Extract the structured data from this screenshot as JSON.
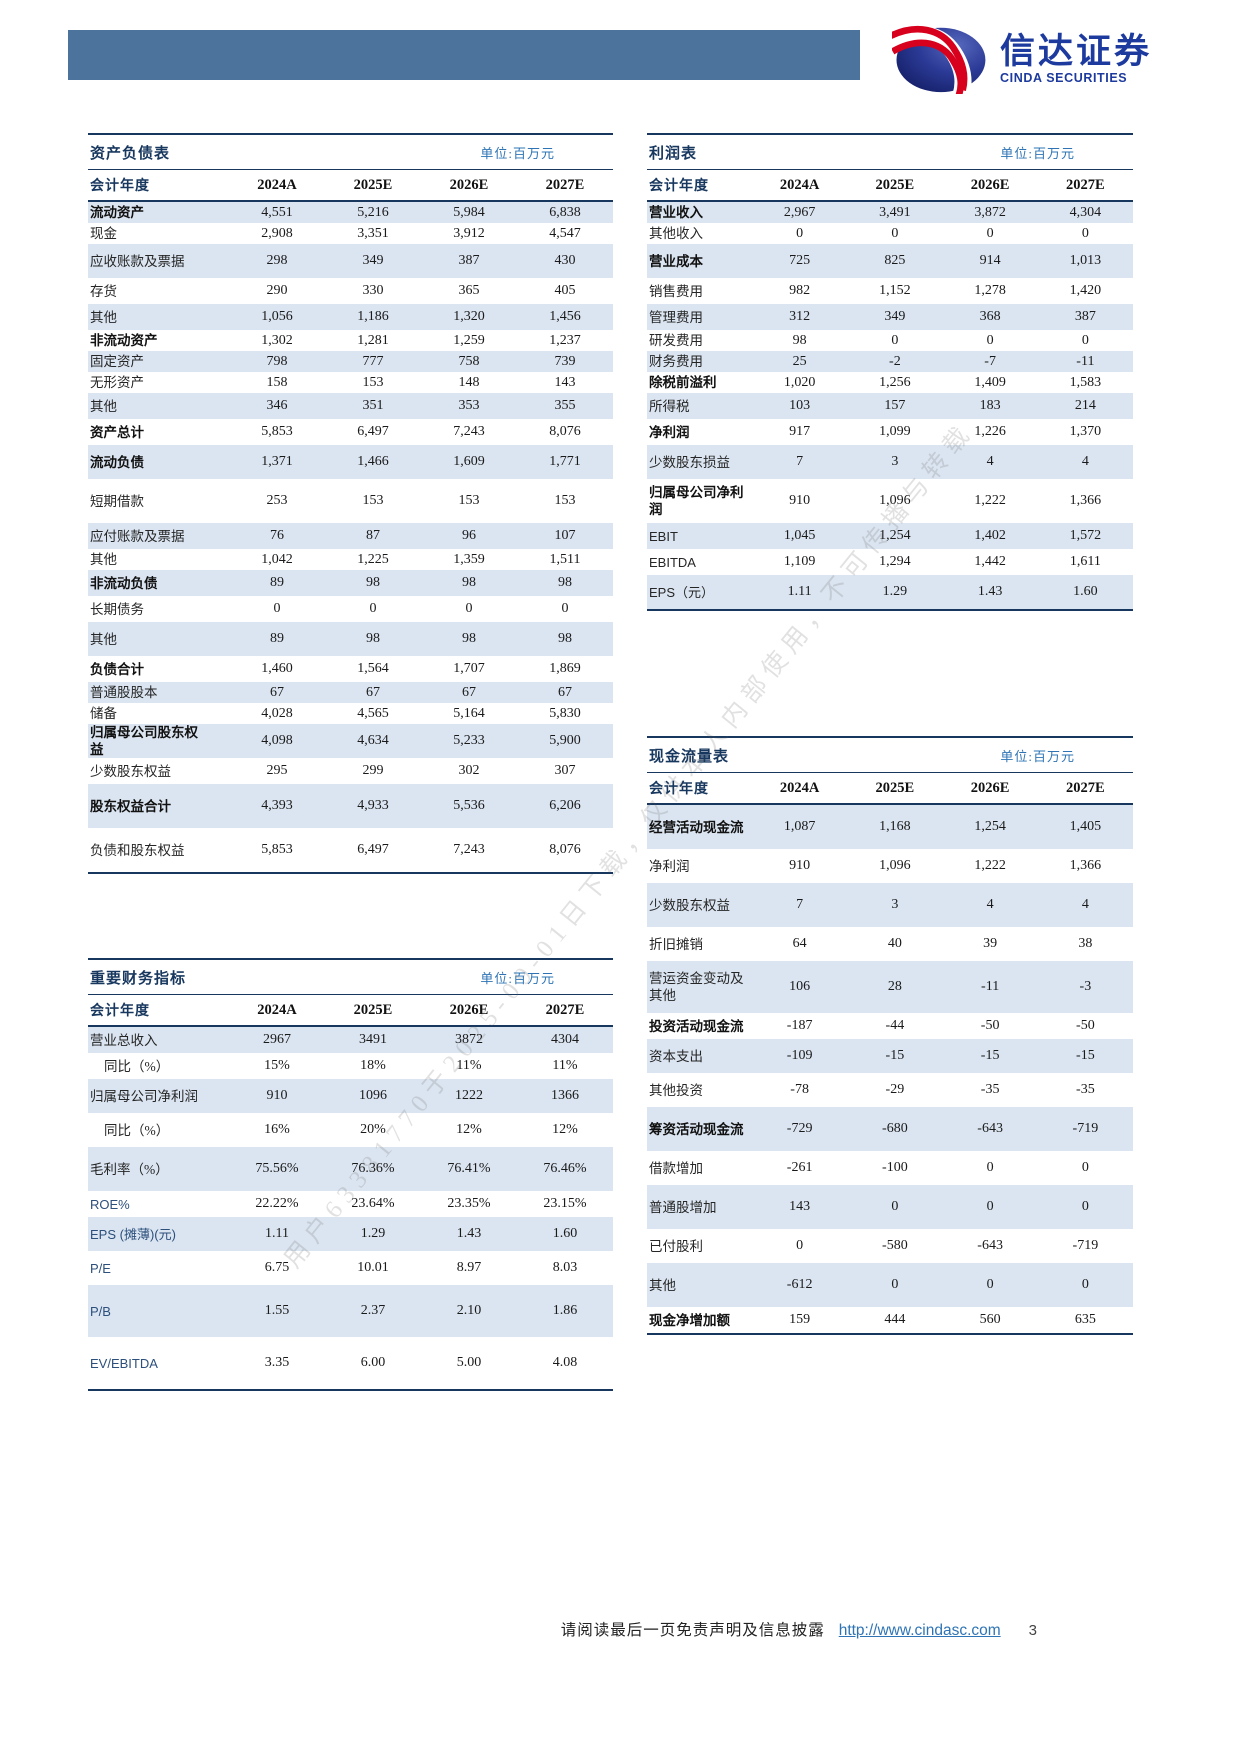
{
  "page": {
    "logo": {
      "cn": "信达证券",
      "en": "CINDA SECURITIES"
    },
    "watermark": "用户63381770于2025-09-01日下载，仅供本人内部使用，不可传播与转载",
    "footer": {
      "disclaimer": "请阅读最后一页免责声明及信息披露",
      "link": "http://www.cindasc.com",
      "page_number": "3"
    },
    "colors": {
      "header_bar": "#4b739c",
      "table_navy": "#17375e",
      "unit_blue": "#2e74b5",
      "stripe_blue": "#dbe5f1",
      "logo_blue": "#1d3a9e",
      "logo_red": "#d7001d"
    }
  },
  "tables": {
    "balance_sheet": {
      "title": "资产负债表",
      "unit": "单位:百万元",
      "header": [
        "会计年度",
        "2024A",
        "2025E",
        "2026E",
        "2027E"
      ],
      "rows": [
        {
          "label": "流动资产",
          "bold": true,
          "size": "s",
          "values": [
            "4,551",
            "5,216",
            "5,984",
            "6,838"
          ]
        },
        {
          "label": "现金",
          "size": "s",
          "values": [
            "2,908",
            "3,351",
            "3,912",
            "4,547"
          ]
        },
        {
          "label": "应收账款及票据",
          "size": "l",
          "values": [
            "298",
            "349",
            "387",
            "430"
          ]
        },
        {
          "label": "存货",
          "size": "m",
          "values": [
            "290",
            "330",
            "365",
            "405"
          ]
        },
        {
          "label": "其他",
          "size": "m",
          "values": [
            "1,056",
            "1,186",
            "1,320",
            "1,456"
          ]
        },
        {
          "label": "非流动资产",
          "bold": true,
          "size": "s",
          "values": [
            "1,302",
            "1,281",
            "1,259",
            "1,237"
          ]
        },
        {
          "label": "固定资产",
          "size": "s",
          "values": [
            "798",
            "777",
            "758",
            "739"
          ]
        },
        {
          "label": "无形资产",
          "size": "s",
          "values": [
            "158",
            "153",
            "148",
            "143"
          ]
        },
        {
          "label": "其他",
          "size": "m",
          "values": [
            "346",
            "351",
            "353",
            "355"
          ]
        },
        {
          "label": "资产总计",
          "bold": true,
          "size": "m",
          "values": [
            "5,853",
            "6,497",
            "7,243",
            "8,076"
          ]
        },
        {
          "label": "流动负债",
          "bold": true,
          "size": "l",
          "values": [
            "1,371",
            "1,466",
            "1,609",
            "1,771"
          ]
        },
        {
          "label": "短期借款",
          "size": "xl",
          "values": [
            "253",
            "153",
            "153",
            "153"
          ]
        },
        {
          "label": "应付账款及票据",
          "size": "m",
          "values": [
            "76",
            "87",
            "96",
            "107"
          ]
        },
        {
          "label": "其他",
          "size": "s",
          "values": [
            "1,042",
            "1,225",
            "1,359",
            "1,511"
          ]
        },
        {
          "label": "非流动负债",
          "bold": true,
          "size": "m",
          "values": [
            "89",
            "98",
            "98",
            "98"
          ]
        },
        {
          "label": "长期债务",
          "size": "m",
          "values": [
            "0",
            "0",
            "0",
            "0"
          ]
        },
        {
          "label": "其他",
          "size": "l",
          "values": [
            "89",
            "98",
            "98",
            "98"
          ]
        },
        {
          "label": "负债合计",
          "bold": true,
          "size": "m",
          "values": [
            "1,460",
            "1,564",
            "1,707",
            "1,869"
          ]
        },
        {
          "label": "普通股股本",
          "size": "s",
          "values": [
            "67",
            "67",
            "67",
            "67"
          ]
        },
        {
          "label": "储备",
          "size": "s",
          "values": [
            "4,028",
            "4,565",
            "5,164",
            "5,830"
          ]
        },
        {
          "label": "归属母公司股东权\n益",
          "bold": true,
          "size": "l",
          "values": [
            "4,098",
            "4,634",
            "5,233",
            "5,900"
          ]
        },
        {
          "label": "少数股东权益",
          "size": "m",
          "values": [
            "295",
            "299",
            "302",
            "307"
          ]
        },
        {
          "label": "股东权益合计",
          "bold": true,
          "size": "xl",
          "values": [
            "4,393",
            "4,933",
            "5,536",
            "6,206"
          ]
        },
        {
          "label": "负债和股东权益",
          "size": "xl",
          "values": [
            "5,853",
            "6,497",
            "7,243",
            "8,076"
          ]
        }
      ]
    },
    "income_statement": {
      "title": "利润表",
      "unit": "单位:百万元",
      "header": [
        "会计年度",
        "2024A",
        "2025E",
        "2026E",
        "2027E"
      ],
      "rows": [
        {
          "label": "营业收入",
          "bold": true,
          "size": "s",
          "values": [
            "2,967",
            "3,491",
            "3,872",
            "4,304"
          ]
        },
        {
          "label": "其他收入",
          "size": "s",
          "values": [
            "0",
            "0",
            "0",
            "0"
          ]
        },
        {
          "label": "营业成本",
          "bold": true,
          "size": "l",
          "values": [
            "725",
            "825",
            "914",
            "1,013"
          ]
        },
        {
          "label": "销售费用",
          "size": "m",
          "values": [
            "982",
            "1,152",
            "1,278",
            "1,420"
          ]
        },
        {
          "label": "管理费用",
          "size": "m",
          "values": [
            "312",
            "349",
            "368",
            "387"
          ]
        },
        {
          "label": "研发费用",
          "size": "s",
          "values": [
            "98",
            "0",
            "0",
            "0"
          ]
        },
        {
          "label": "财务费用",
          "size": "s",
          "values": [
            "25",
            "-2",
            "-7",
            "-11"
          ]
        },
        {
          "label": "除税前溢利",
          "bold": true,
          "size": "s",
          "values": [
            "1,020",
            "1,256",
            "1,409",
            "1,583"
          ]
        },
        {
          "label": "所得税",
          "size": "m",
          "values": [
            "103",
            "157",
            "183",
            "214"
          ]
        },
        {
          "label": "净利润",
          "bold": true,
          "size": "m",
          "values": [
            "917",
            "1,099",
            "1,226",
            "1,370"
          ]
        },
        {
          "label": "少数股东损益",
          "size": "l",
          "values": [
            "7",
            "3",
            "4",
            "4"
          ]
        },
        {
          "label": "归属母公司净利\n润",
          "bold": true,
          "size": "xl",
          "values": [
            "910",
            "1,096",
            "1,222",
            "1,366"
          ]
        },
        {
          "label": "EBIT",
          "latin": true,
          "size": "m",
          "values": [
            "1,045",
            "1,254",
            "1,402",
            "1,572"
          ]
        },
        {
          "label": "EBITDA",
          "latin": true,
          "size": "m",
          "values": [
            "1,109",
            "1,294",
            "1,442",
            "1,611"
          ]
        },
        {
          "label": "EPS（元）",
          "latin": true,
          "size": "l",
          "values": [
            "1.11",
            "1.29",
            "1.43",
            "1.60"
          ]
        }
      ]
    },
    "cash_flow": {
      "title": "现金流量表",
      "unit": "单位:百万元",
      "header": [
        "会计年度",
        "2024A",
        "2025E",
        "2026E",
        "2027E"
      ],
      "rows": [
        {
          "label": "经营活动现金流",
          "bold": true,
          "size": "xl",
          "values": [
            "1,087",
            "1,168",
            "1,254",
            "1,405"
          ]
        },
        {
          "label": "净利润",
          "size": "l",
          "values": [
            "910",
            "1,096",
            "1,222",
            "1,366"
          ]
        },
        {
          "label": "少数股东权益",
          "size": "xl",
          "values": [
            "7",
            "3",
            "4",
            "4"
          ]
        },
        {
          "label": "折旧摊销",
          "size": "l",
          "values": [
            "64",
            "40",
            "39",
            "38"
          ]
        },
        {
          "label": "营运资金变动及\n其他",
          "size": "xxl",
          "values": [
            "106",
            "28",
            "-11",
            "-3"
          ]
        },
        {
          "label": "投资活动现金流",
          "bold": true,
          "size": "m",
          "values": [
            "-187",
            "-44",
            "-50",
            "-50"
          ]
        },
        {
          "label": "资本支出",
          "size": "l",
          "values": [
            "-109",
            "-15",
            "-15",
            "-15"
          ]
        },
        {
          "label": "其他投资",
          "size": "l",
          "values": [
            "-78",
            "-29",
            "-35",
            "-35"
          ]
        },
        {
          "label": "筹资活动现金流",
          "bold": true,
          "size": "xl",
          "values": [
            "-729",
            "-680",
            "-643",
            "-719"
          ]
        },
        {
          "label": "借款增加",
          "size": "l",
          "values": [
            "-261",
            "-100",
            "0",
            "0"
          ]
        },
        {
          "label": "普通股增加",
          "size": "xl",
          "values": [
            "143",
            "0",
            "0",
            "0"
          ]
        },
        {
          "label": "已付股利",
          "size": "l",
          "values": [
            "0",
            "-580",
            "-643",
            "-719"
          ]
        },
        {
          "label": "其他",
          "size": "xl",
          "values": [
            "-612",
            "0",
            "0",
            "0"
          ]
        },
        {
          "label": "现金净增加额",
          "bold": true,
          "size": "m",
          "values": [
            "159",
            "444",
            "560",
            "635"
          ]
        }
      ]
    },
    "key_indicators": {
      "title": "重要财务指标",
      "unit": "单位:百万元",
      "header": [
        "会计年度",
        "2024A",
        "2025E",
        "2026E",
        "2027E"
      ],
      "rows": [
        {
          "label": "营业总收入",
          "size": "m",
          "values": [
            "2967",
            "3491",
            "3872",
            "4304"
          ]
        },
        {
          "label": "同比（%）",
          "indent": true,
          "size": "m",
          "values": [
            "15%",
            "18%",
            "11%",
            "11%"
          ]
        },
        {
          "label": "归属母公司净利润",
          "size": "l",
          "values": [
            "910",
            "1096",
            "1222",
            "1366"
          ]
        },
        {
          "label": "同比（%）",
          "indent": true,
          "size": "l",
          "values": [
            "16%",
            "20%",
            "12%",
            "12%"
          ]
        },
        {
          "label": "毛利率（%）",
          "size": "xl",
          "values": [
            "75.56%",
            "76.36%",
            "76.41%",
            "76.46%"
          ]
        },
        {
          "label": "ROE%",
          "latin": true,
          "size": "m",
          "values": [
            "22.22%",
            "23.64%",
            "23.35%",
            "23.15%"
          ]
        },
        {
          "label": "EPS (摊薄)(元)",
          "latin": true,
          "size": "l",
          "values": [
            "1.11",
            "1.29",
            "1.43",
            "1.60"
          ]
        },
        {
          "label": "P/E",
          "latin": true,
          "size": "l",
          "values": [
            "6.75",
            "10.01",
            "8.97",
            "8.03"
          ]
        },
        {
          "label": "P/B",
          "latin": true,
          "size": "xxl",
          "values": [
            "1.55",
            "2.37",
            "2.10",
            "1.86"
          ]
        },
        {
          "label": "EV/EBITDA",
          "latin": true,
          "size": "xxl",
          "values": [
            "3.35",
            "6.00",
            "5.00",
            "4.08"
          ]
        }
      ]
    }
  }
}
